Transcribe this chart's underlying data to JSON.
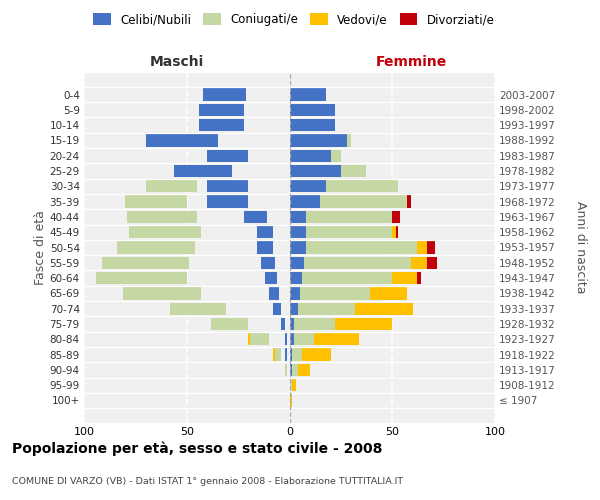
{
  "age_groups": [
    "100+",
    "95-99",
    "90-94",
    "85-89",
    "80-84",
    "75-79",
    "70-74",
    "65-69",
    "60-64",
    "55-59",
    "50-54",
    "45-49",
    "40-44",
    "35-39",
    "30-34",
    "25-29",
    "20-24",
    "15-19",
    "10-14",
    "5-9",
    "0-4"
  ],
  "birth_years": [
    "≤ 1907",
    "1908-1912",
    "1913-1917",
    "1918-1922",
    "1923-1927",
    "1928-1932",
    "1933-1937",
    "1938-1942",
    "1943-1947",
    "1948-1952",
    "1953-1957",
    "1958-1962",
    "1963-1967",
    "1968-1972",
    "1973-1977",
    "1978-1982",
    "1983-1987",
    "1988-1992",
    "1993-1997",
    "1998-2002",
    "2003-2007"
  ],
  "male_celibi": [
    0,
    0,
    0,
    1,
    1,
    2,
    4,
    5,
    6,
    7,
    8,
    8,
    11,
    20,
    20,
    28,
    20,
    35,
    22,
    22,
    21
  ],
  "male_coniugati": [
    0,
    0,
    1,
    3,
    9,
    18,
    27,
    38,
    44,
    42,
    38,
    35,
    34,
    30,
    25,
    5,
    2,
    0,
    0,
    0,
    0
  ],
  "male_vedovi": [
    0,
    0,
    0,
    2,
    5,
    5,
    8,
    4,
    2,
    1,
    0,
    1,
    0,
    0,
    1,
    0,
    0,
    0,
    0,
    0,
    0
  ],
  "male_divorziati": [
    0,
    0,
    0,
    0,
    0,
    0,
    0,
    0,
    0,
    1,
    4,
    1,
    2,
    2,
    0,
    0,
    0,
    0,
    0,
    0,
    0
  ],
  "female_celibi": [
    0,
    0,
    1,
    1,
    2,
    2,
    4,
    5,
    6,
    7,
    8,
    8,
    8,
    15,
    18,
    25,
    20,
    28,
    22,
    22,
    18
  ],
  "female_coniugati": [
    0,
    1,
    3,
    5,
    10,
    20,
    28,
    34,
    44,
    52,
    54,
    42,
    42,
    42,
    35,
    12,
    5,
    2,
    0,
    0,
    0
  ],
  "female_vedovi": [
    1,
    2,
    6,
    14,
    22,
    28,
    28,
    18,
    12,
    8,
    5,
    2,
    0,
    0,
    0,
    0,
    0,
    0,
    0,
    0,
    0
  ],
  "female_divorziati": [
    0,
    0,
    0,
    0,
    0,
    0,
    0,
    0,
    2,
    5,
    4,
    1,
    4,
    2,
    0,
    0,
    0,
    0,
    0,
    0,
    0
  ],
  "color_celibi": "#4472c4",
  "color_coniugati": "#c5d8a4",
  "color_vedovi": "#ffc000",
  "color_divorziati": "#c0000a",
  "xlim": 100,
  "title": "Popolazione per età, sesso e stato civile - 2008",
  "subtitle": "COMUNE DI VARZO (VB) - Dati ISTAT 1° gennaio 2008 - Elaborazione TUTTITALIA.IT",
  "ylabel_left": "Fasce di età",
  "ylabel_right": "Anni di nascita",
  "xlabel_left": "Maschi",
  "xlabel_right": "Femmine",
  "bg_color": "#f0f0f0"
}
